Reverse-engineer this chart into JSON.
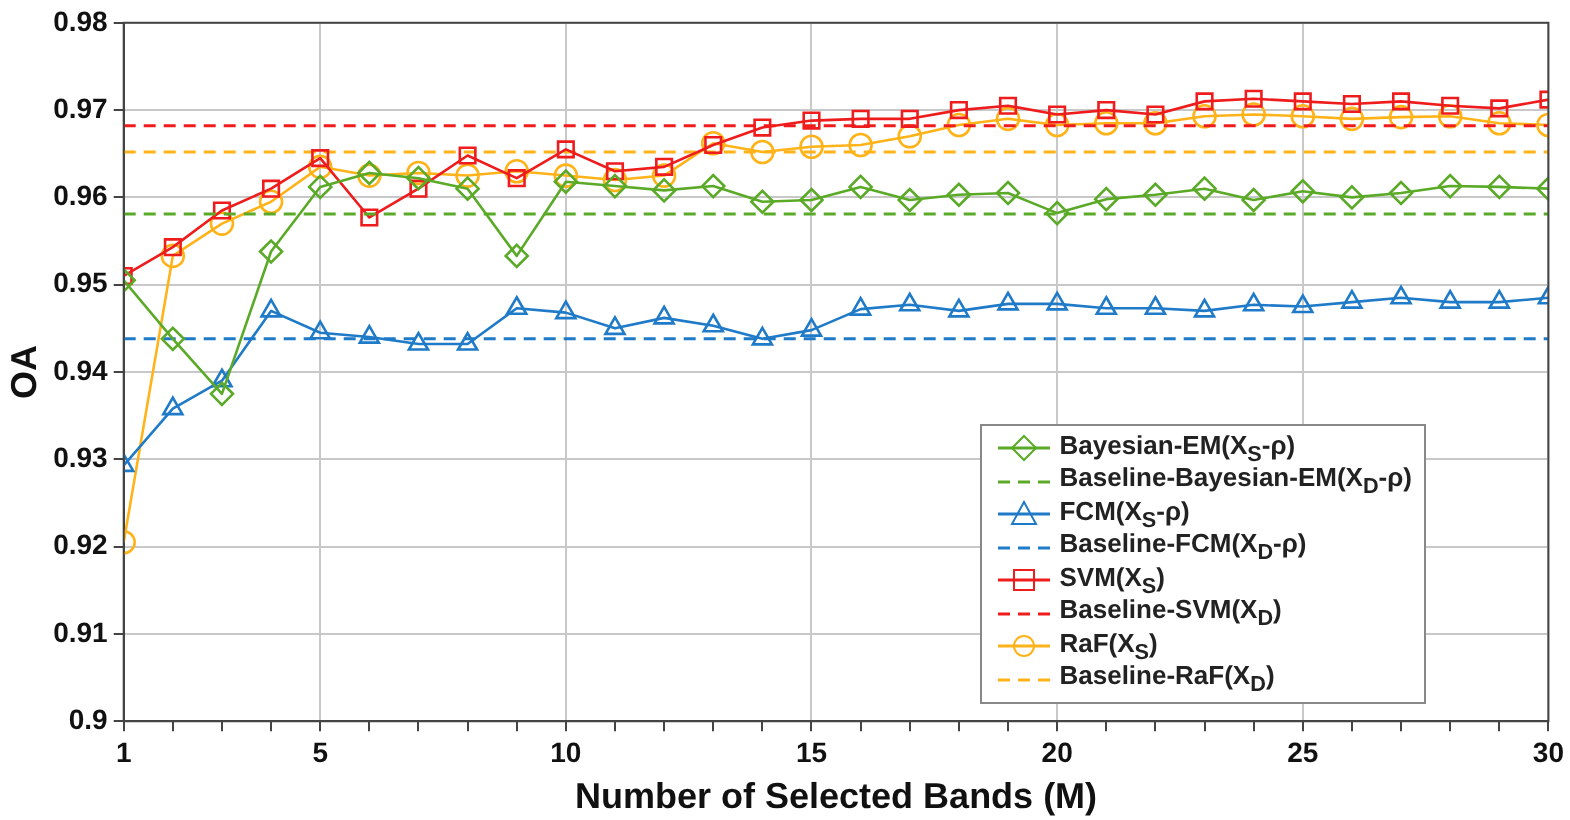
{
  "chart_data": {
    "type": "line",
    "xlabel": "Number of Selected Bands (M)",
    "ylabel": "OA",
    "x": [
      1,
      2,
      3,
      4,
      5,
      6,
      7,
      8,
      9,
      10,
      11,
      12,
      13,
      14,
      15,
      16,
      17,
      18,
      19,
      20,
      21,
      22,
      23,
      24,
      25,
      26,
      27,
      28,
      29,
      30
    ],
    "series": [
      {
        "name": "Bayesian-EM(X$_{S}$-ρ)",
        "color": "#5aaa28",
        "marker": "diamond",
        "values": [
          0.9505,
          0.9438,
          0.9375,
          0.9538,
          0.9612,
          0.9628,
          0.9622,
          0.961,
          0.9533,
          0.9618,
          0.9613,
          0.9608,
          0.9613,
          0.9595,
          0.9597,
          0.9612,
          0.9597,
          0.9603,
          0.9605,
          0.9582,
          0.9598,
          0.9603,
          0.961,
          0.9597,
          0.9607,
          0.96,
          0.9605,
          0.9613,
          0.9612,
          0.961
        ]
      },
      {
        "name": "FCM(X$_{S}$-ρ)",
        "color": "#1f7ac8",
        "marker": "triangle",
        "values": [
          0.9293,
          0.9358,
          0.939,
          0.947,
          0.9445,
          0.944,
          0.9432,
          0.9432,
          0.9473,
          0.9468,
          0.945,
          0.9462,
          0.9453,
          0.9438,
          0.9448,
          0.9472,
          0.9477,
          0.947,
          0.9478,
          0.9478,
          0.9473,
          0.9473,
          0.947,
          0.9477,
          0.9475,
          0.948,
          0.9485,
          0.948,
          0.948,
          0.9485
        ]
      },
      {
        "name": "SVM(X$_{S}$)",
        "color": "#ee1c1c",
        "marker": "square",
        "values": [
          0.951,
          0.9543,
          0.9585,
          0.961,
          0.9645,
          0.9577,
          0.961,
          0.9648,
          0.9622,
          0.9655,
          0.963,
          0.9635,
          0.966,
          0.968,
          0.9688,
          0.969,
          0.969,
          0.97,
          0.9705,
          0.9695,
          0.97,
          0.9695,
          0.971,
          0.9713,
          0.971,
          0.9707,
          0.971,
          0.9705,
          0.9702,
          0.9712
        ]
      },
      {
        "name": "RaF(X$_{S}$)",
        "color": "#ffb319",
        "marker": "circle",
        "values": [
          0.9205,
          0.9533,
          0.957,
          0.9595,
          0.9635,
          0.9625,
          0.9628,
          0.9625,
          0.963,
          0.9625,
          0.962,
          0.9625,
          0.9662,
          0.9652,
          0.9658,
          0.966,
          0.967,
          0.9683,
          0.969,
          0.9683,
          0.9685,
          0.9685,
          0.9693,
          0.9695,
          0.9693,
          0.969,
          0.9692,
          0.9693,
          0.9685,
          0.9683
        ]
      }
    ],
    "ref_lines": [
      {
        "axis": "y",
        "value": 0.9581,
        "label": "Baseline-Bayesian-EM(X$_{D}$-ρ)",
        "color": "#5aaa28",
        "line_style": "dashed"
      },
      {
        "axis": "y",
        "value": 0.9438,
        "label": "Baseline-FCM(X$_{D}$-ρ)",
        "color": "#1f7ac8",
        "line_style": "dashed"
      },
      {
        "axis": "y",
        "value": 0.9682,
        "label": "Baseline-SVM(X$_{D}$)",
        "color": "#ee1c1c",
        "line_style": "dashed"
      },
      {
        "axis": "y",
        "value": 0.9652,
        "label": "Baseline-RaF(X$_{D}$)",
        "color": "#ffb319",
        "line_style": "dashed"
      }
    ],
    "xlim": [
      1,
      30
    ],
    "xticks": [
      1,
      {
        "value": 2,
        "label": null
      },
      {
        "value": 3,
        "label": null
      },
      {
        "value": 4,
        "label": null
      },
      5,
      {
        "value": 6,
        "label": null
      },
      {
        "value": 7,
        "label": null
      },
      {
        "value": 8,
        "label": null
      },
      {
        "value": 9,
        "label": null
      },
      10,
      {
        "value": 11,
        "label": null
      },
      {
        "value": 12,
        "label": null
      },
      {
        "value": 13,
        "label": null
      },
      {
        "value": 14,
        "label": null
      },
      15,
      {
        "value": 16,
        "label": null
      },
      {
        "value": 17,
        "label": null
      },
      {
        "value": 18,
        "label": null
      },
      {
        "value": 19,
        "label": null
      },
      20,
      {
        "value": 21,
        "label": null
      },
      {
        "value": 22,
        "label": null
      },
      {
        "value": 23,
        "label": null
      },
      {
        "value": 24,
        "label": null
      },
      25,
      {
        "value": 26,
        "label": null
      },
      {
        "value": 27,
        "label": null
      },
      {
        "value": 28,
        "label": null
      },
      {
        "value": 29,
        "label": null
      },
      30
    ],
    "ylim": [
      0.9,
      0.98
    ],
    "yticks": [
      0.9,
      0.91,
      0.92,
      0.93,
      0.94,
      0.95,
      0.96,
      0.97,
      0.98
    ],
    "grid": true,
    "legend": "bottom right",
    "line_style": "solid"
  }
}
